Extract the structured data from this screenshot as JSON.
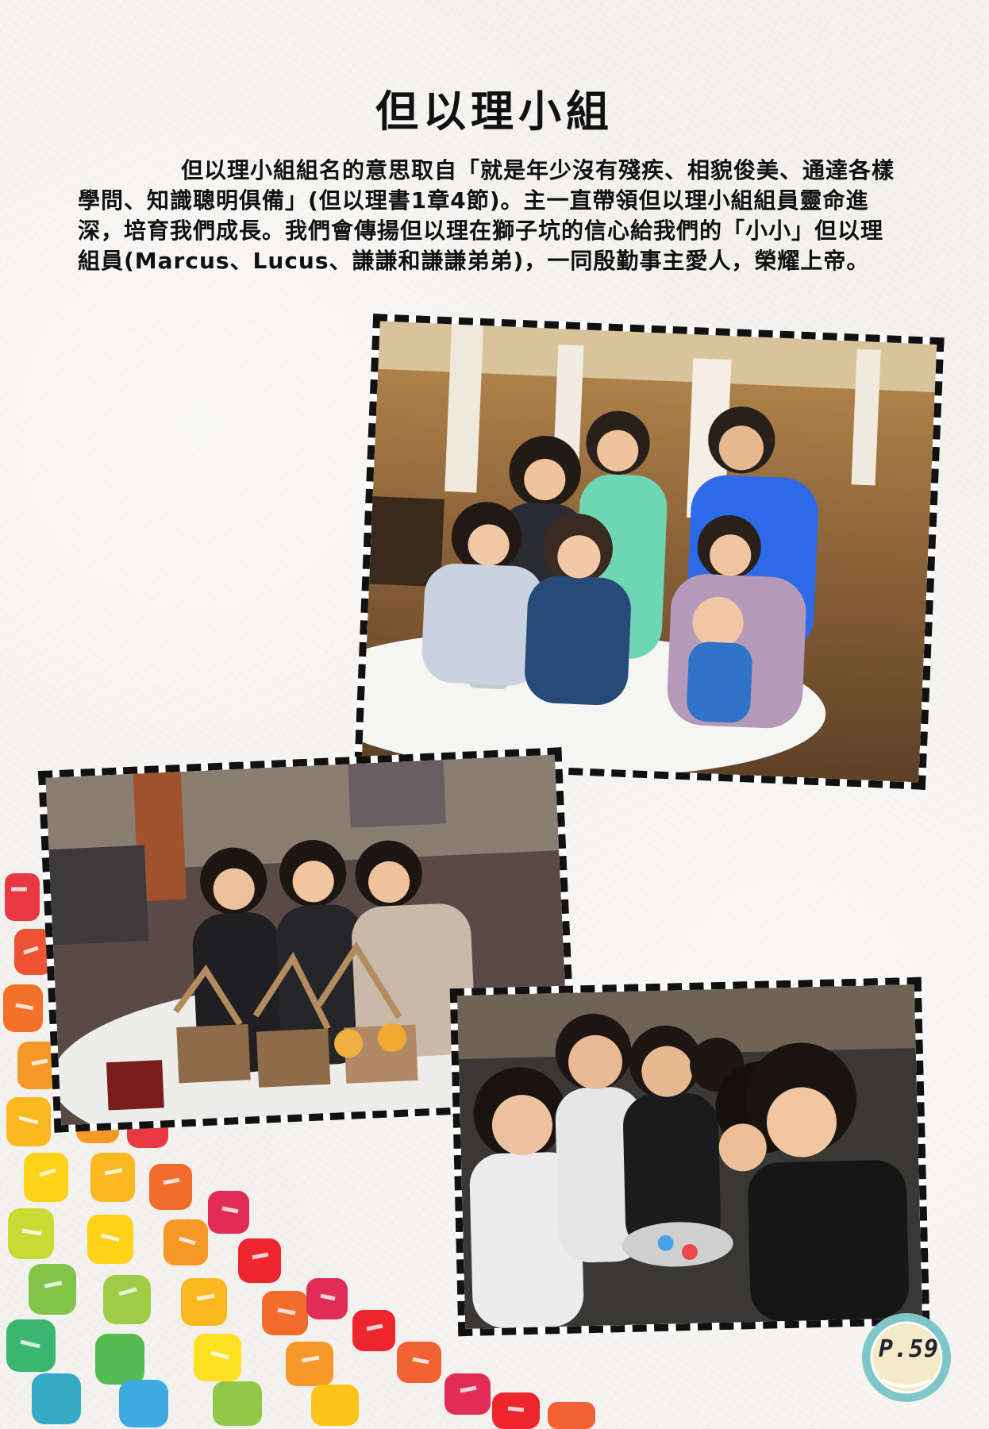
{
  "page": {
    "title": "但以理小組",
    "paragraph": "但以理小組組名的意思取自「就是年少沒有殘疾、相貌俊美、通達各樣學問、知識聰明俱備」(但以理書1章4節)。主一直帶領但以理小組組員靈命進深，培育我們成長。我們會傳揚但以理在獅子坑的信心給我們的「小小」但以理組員(Marcus、Lucus、謙謙和謙謙弟弟)，一同殷勤事主愛人，榮耀上帝。",
    "page_number": "P.59"
  },
  "photos": [
    {
      "name": "group-photo-restaurant"
    },
    {
      "name": "group-photo-banquet"
    },
    {
      "name": "group-photo-toast"
    }
  ],
  "colors": {
    "text": "#111111",
    "frame": "#111111",
    "badge_ring": "#7ec6c9",
    "badge_inner": "#f5e9c8"
  }
}
